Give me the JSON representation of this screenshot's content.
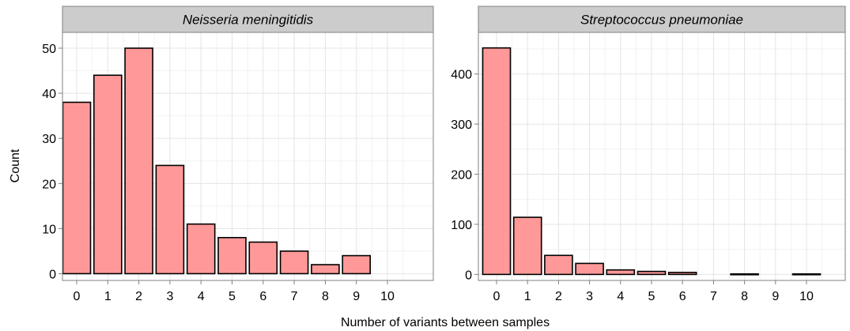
{
  "chart_data": [
    {
      "type": "bar",
      "title": "Neisseria meningitidis",
      "xlabel": "Number of variants between samples",
      "ylabel": "Count",
      "categories": [
        "0",
        "1",
        "2",
        "3",
        "4",
        "5",
        "6",
        "7",
        "8",
        "9",
        "10"
      ],
      "values": [
        38,
        44,
        50,
        24,
        11,
        8,
        7,
        5,
        2,
        4,
        null
      ],
      "ylim": [
        -1.5,
        53.5
      ],
      "yticks": [
        0,
        10,
        20,
        30,
        40,
        50
      ],
      "grid": true
    },
    {
      "type": "bar",
      "title": "Streptococcus pneumoniae",
      "xlabel": "Number of variants between samples",
      "ylabel": "Count",
      "categories": [
        "0",
        "1",
        "2",
        "3",
        "4",
        "5",
        "6",
        "7",
        "8",
        "9",
        "10"
      ],
      "values": [
        452,
        114,
        38,
        22,
        9,
        6,
        4,
        null,
        1,
        null,
        1
      ],
      "ylim": [
        -12,
        483
      ],
      "yticks": [
        0,
        100,
        200,
        300,
        400
      ],
      "grid": true
    }
  ],
  "colors": {
    "bar_fill": "#FF9999",
    "bar_stroke": "#000000",
    "panel_bg": "#FFFFFF",
    "grid_major": "#E4E4E4",
    "grid_minor": "#F2F2F2",
    "strip_bg": "#CCCCCC",
    "panel_border": "#808080"
  }
}
